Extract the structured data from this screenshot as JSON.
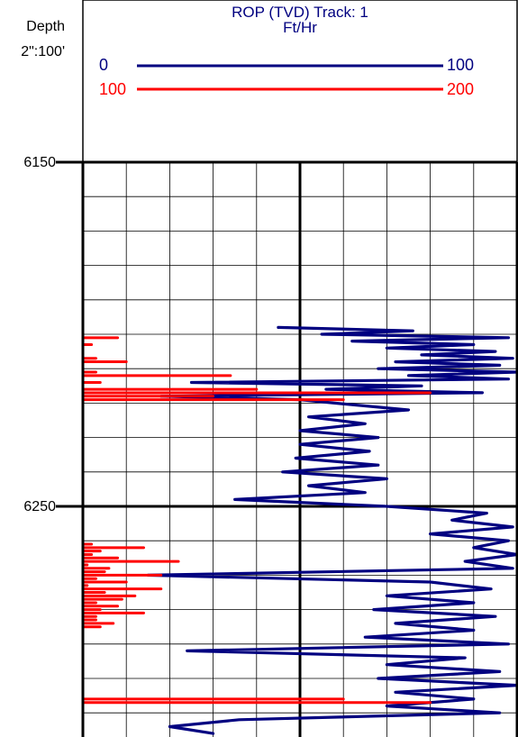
{
  "header": {
    "depth_title": "Depth",
    "depth_scale": "2\":100'",
    "track_title": "ROP (TVD) Track: 1",
    "track_unit": "Ft/Hr"
  },
  "scales": {
    "blue_left": "0",
    "blue_right": "100",
    "red_left": "100",
    "red_right": "200"
  },
  "depth_labels": [
    "6150",
    "6250"
  ],
  "colors": {
    "blue": "#000080",
    "red": "#ff0000",
    "grid": "#000000"
  },
  "chart_data": {
    "type": "line",
    "title": "ROP (TVD) Track: 1",
    "unit": "Ft/Hr",
    "depth_range": [
      6150,
      6316
    ],
    "grid": true,
    "series": [
      {
        "color": "#000080",
        "x_range": [
          0,
          100
        ],
        "depth": [
          6198,
          6199,
          6200,
          6201,
          6202,
          6203,
          6204,
          6205,
          6206,
          6207,
          6208,
          6209,
          6210,
          6211,
          6212,
          6213,
          6214,
          6215,
          6216,
          6217,
          6218,
          6219,
          6220,
          6222,
          6224,
          6226,
          6228,
          6230,
          6232,
          6234,
          6236,
          6238,
          6240,
          6242,
          6244,
          6246,
          6248,
          6250,
          6252,
          6254,
          6256,
          6258,
          6260,
          6262,
          6264,
          6266,
          6268,
          6270,
          6272,
          6274,
          6276,
          6278,
          6280,
          6282,
          6284,
          6286,
          6288,
          6290,
          6292,
          6294,
          6296,
          6298,
          6300,
          6302,
          6304,
          6306,
          6308,
          6310,
          6312,
          6314,
          6316
        ],
        "values": [
          45,
          76,
          55,
          98,
          62,
          90,
          70,
          95,
          78,
          99,
          72,
          96,
          68,
          100,
          75,
          98,
          25,
          78,
          56,
          92,
          18,
          50,
          58,
          75,
          52,
          65,
          50,
          68,
          50,
          66,
          49,
          68,
          46,
          70,
          52,
          65,
          35,
          70,
          93,
          85,
          99,
          80,
          98,
          90,
          100,
          88,
          99,
          15,
          80,
          94,
          70,
          90,
          67,
          95,
          72,
          90,
          65,
          98,
          24,
          88,
          70,
          96,
          68,
          100,
          72,
          90,
          70,
          96,
          36,
          20,
          30
        ]
      },
      {
        "color": "#ff0000",
        "x_range": [
          100,
          200
        ],
        "depth": [
          6200,
          6201,
          6202,
          6203,
          6204,
          6205,
          6206,
          6207,
          6208,
          6209,
          6210,
          6211,
          6212,
          6213,
          6214,
          6215,
          6216,
          6217,
          6218,
          6219,
          6220,
          6260,
          6261,
          6262,
          6263,
          6264,
          6265,
          6266,
          6267,
          6268,
          6269,
          6270,
          6271,
          6272,
          6273,
          6274,
          6275,
          6276,
          6277,
          6278,
          6279,
          6280,
          6281,
          6282,
          6283,
          6284,
          6285,
          6305,
          6306,
          6307
        ],
        "values": [
          100,
          108,
          100,
          102,
          100,
          100,
          100,
          103,
          110,
          100,
          100,
          103,
          134,
          100,
          104,
          100,
          140,
          180,
          130,
          160,
          100,
          100,
          102,
          114,
          104,
          102,
          108,
          122,
          101,
          106,
          105,
          118,
          103,
          110,
          101,
          118,
          105,
          112,
          109,
          103,
          108,
          104,
          114,
          103,
          103,
          107,
          104,
          100,
          160,
          180
        ]
      }
    ]
  }
}
